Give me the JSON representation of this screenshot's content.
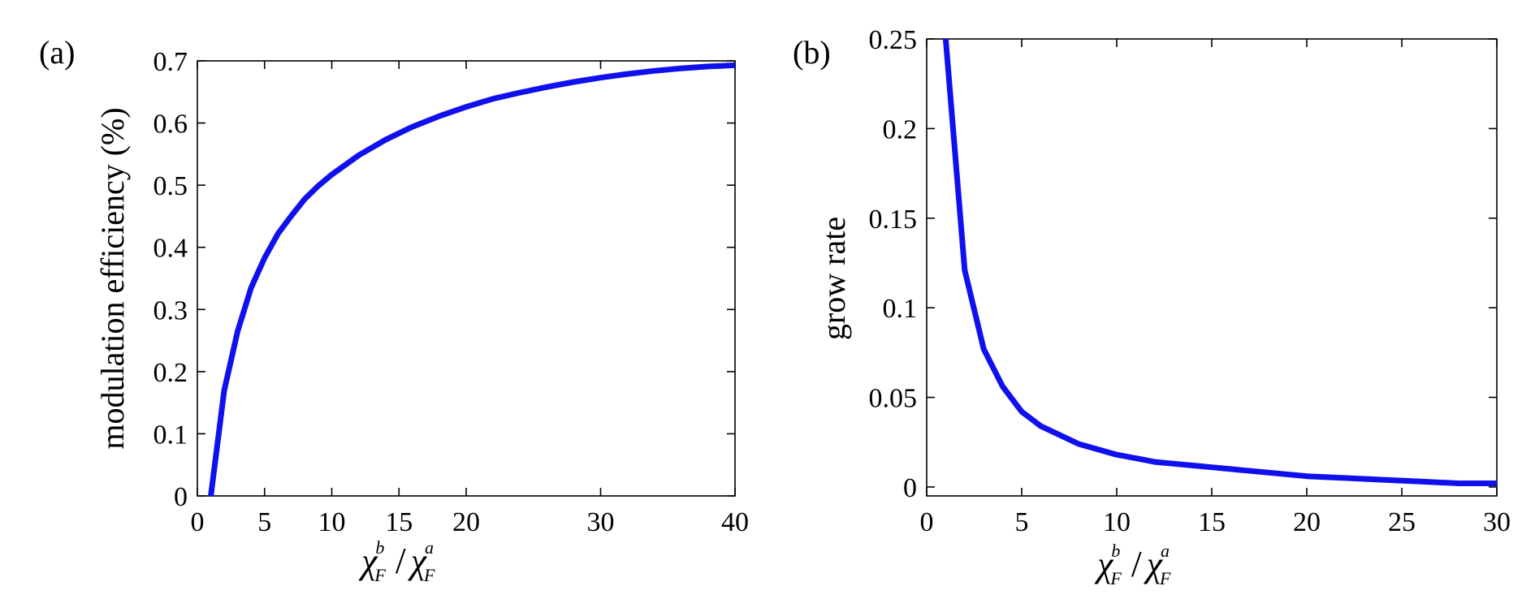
{
  "chart_data": [
    {
      "type": "line",
      "panel_label": "(a)",
      "xlabel": "χ_F^b / χ_F^a",
      "xlabel_parts": {
        "num_sym": "χ",
        "num_sub": "F",
        "num_sup": "b",
        "slash": "/",
        "den_sym": "χ",
        "den_sub": "F",
        "den_sup": "a"
      },
      "ylabel": "modulation efficiency (%)",
      "xlim": [
        0,
        40
      ],
      "ylim": [
        0,
        0.7
      ],
      "xticks": [
        0,
        5,
        10,
        15,
        20,
        30,
        40
      ],
      "xtick_labels": [
        "0",
        "5",
        "10",
        "15",
        "20",
        "30",
        "40"
      ],
      "yticks": [
        0,
        0.1,
        0.2,
        0.3,
        0.4,
        0.5,
        0.6,
        0.7
      ],
      "ytick_labels": [
        "0",
        "0.1",
        "0.2",
        "0.3",
        "0.4",
        "0.5",
        "0.6",
        "0.7"
      ],
      "grid": false,
      "series": [
        {
          "color": "#1010ee",
          "x": [
            1,
            2,
            3,
            4,
            5,
            6,
            7,
            8,
            9,
            10,
            12,
            14,
            16,
            18,
            20,
            22,
            24,
            26,
            28,
            30,
            32,
            34,
            36,
            38,
            40
          ],
          "y": [
            0.0,
            0.17,
            0.265,
            0.335,
            0.383,
            0.422,
            0.451,
            0.478,
            0.499,
            0.517,
            0.548,
            0.573,
            0.594,
            0.611,
            0.626,
            0.639,
            0.649,
            0.658,
            0.666,
            0.673,
            0.679,
            0.684,
            0.688,
            0.691,
            0.693
          ]
        }
      ]
    },
    {
      "type": "line",
      "panel_label": "(b)",
      "xlabel": "χ_F^b / χ_F^a",
      "xlabel_parts": {
        "num_sym": "χ",
        "num_sub": "F",
        "num_sup": "b",
        "slash": "/",
        "den_sym": "χ",
        "den_sub": "F",
        "den_sup": "a"
      },
      "ylabel": "grow rate",
      "xlim": [
        0,
        30
      ],
      "ylim": [
        -0.005,
        0.25
      ],
      "xticks": [
        0,
        5,
        10,
        15,
        20,
        25,
        30
      ],
      "xtick_labels": [
        "0",
        "5",
        "10",
        "15",
        "20",
        "25",
        "30"
      ],
      "yticks": [
        0,
        0.05,
        0.1,
        0.15,
        0.2,
        0.25
      ],
      "ytick_labels": [
        "0",
        "0.05",
        "0.1",
        "0.15",
        "0.2",
        "0.25"
      ],
      "grid": false,
      "series": [
        {
          "color": "#1010ee",
          "x": [
            1,
            2,
            3,
            4,
            5,
            6,
            7,
            8,
            9,
            10,
            11,
            12,
            13,
            14,
            15,
            16,
            18,
            20,
            22,
            24,
            26,
            28,
            30
          ],
          "y": [
            0.25,
            0.121,
            0.077,
            0.056,
            0.042,
            0.034,
            0.029,
            0.024,
            0.021,
            0.018,
            0.016,
            0.014,
            0.013,
            0.012,
            0.011,
            0.01,
            0.008,
            0.006,
            0.005,
            0.004,
            0.003,
            0.002,
            0.002
          ]
        }
      ]
    }
  ]
}
